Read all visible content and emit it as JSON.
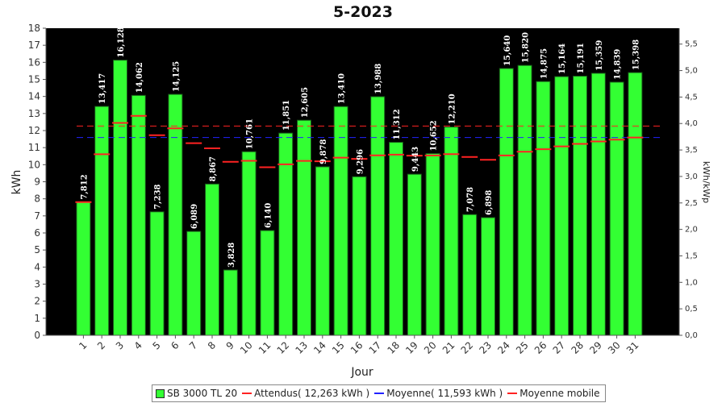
{
  "chart_data": {
    "type": "bar",
    "title": "5-2023",
    "xlabel": "Jour",
    "ylabel": "kWh",
    "y2label": "kWh/kWp",
    "ylim": [
      0,
      18
    ],
    "y2lim": [
      0,
      5.8
    ],
    "yticks": [
      "0",
      "1",
      "2",
      "3",
      "4",
      "5",
      "6",
      "7",
      "8",
      "9",
      "10",
      "11",
      "12",
      "13",
      "14",
      "15",
      "16",
      "17",
      "18"
    ],
    "y2ticks": [
      "0,0",
      "0,5",
      "1,0",
      "1,5",
      "2,0",
      "2,5",
      "3,0",
      "3,5",
      "4,0",
      "4,5",
      "5,0",
      "5,5"
    ],
    "categories": [
      "1",
      "2",
      "3",
      "4",
      "5",
      "6",
      "7",
      "8",
      "9",
      "10",
      "11",
      "12",
      "13",
      "14",
      "15",
      "16",
      "17",
      "18",
      "19",
      "20",
      "21",
      "22",
      "23",
      "24",
      "25",
      "26",
      "27",
      "28",
      "29",
      "30",
      "31"
    ],
    "series": [
      {
        "name": "SB 3000 TL 20",
        "type": "bar",
        "color": "#33ff33",
        "values": [
          7.812,
          13.417,
          16.128,
          14.062,
          7.238,
          14.125,
          6.089,
          8.867,
          3.828,
          10.761,
          6.14,
          11.851,
          12.605,
          9.878,
          13.41,
          9.296,
          13.988,
          11.312,
          9.443,
          10.652,
          12.21,
          7.078,
          6.898,
          15.64,
          15.82,
          14.875,
          15.164,
          15.191,
          15.359,
          14.839,
          15.398
        ],
        "labels": [
          "7,812",
          "13,417",
          "16,128",
          "14,062",
          "7,238",
          "14,125",
          "6,089",
          "8,867",
          "3,828",
          "10,761",
          "6,140",
          "11,851",
          "12,605",
          "9,878",
          "13,410",
          "9,296",
          "13,988",
          "11,312",
          "9,443",
          "10,652",
          "12,210",
          "7,078",
          "6,898",
          "15,640",
          "15,820",
          "14,875",
          "15,164",
          "15,191",
          "15,359",
          "14,839",
          "15,398"
        ]
      },
      {
        "name": "Attendus( 12,263 kWh )",
        "type": "hline",
        "color": "#ff2222",
        "value": 12.263
      },
      {
        "name": "Moyenne( 11,593 kWh )",
        "type": "hline",
        "color": "#2222ff",
        "value": 11.593
      },
      {
        "name": "Moyenne mobile",
        "type": "step",
        "color": "#ff2222",
        "values": [
          7.81,
          10.61,
          12.45,
          12.86,
          11.73,
          12.13,
          11.26,
          10.96,
          10.17,
          10.23,
          9.85,
          10.02,
          10.22,
          10.2,
          10.41,
          10.34,
          10.55,
          10.59,
          10.53,
          10.54,
          10.62,
          10.45,
          10.29,
          10.54,
          10.76,
          10.91,
          11.07,
          11.22,
          11.36,
          11.47,
          11.59
        ]
      }
    ],
    "legend_position": "bottom",
    "grid": false
  },
  "legend": {
    "items": [
      {
        "label": "SB 3000 TL 20",
        "color": "#33ff33",
        "kind": "box"
      },
      {
        "label": "Attendus( 12,263 kWh )",
        "color": "#ff2222",
        "kind": "line"
      },
      {
        "label": "Moyenne( 11,593 kWh )",
        "color": "#2222ff",
        "kind": "line"
      },
      {
        "label": "Moyenne mobile",
        "color": "#ff2222",
        "kind": "line"
      }
    ]
  }
}
